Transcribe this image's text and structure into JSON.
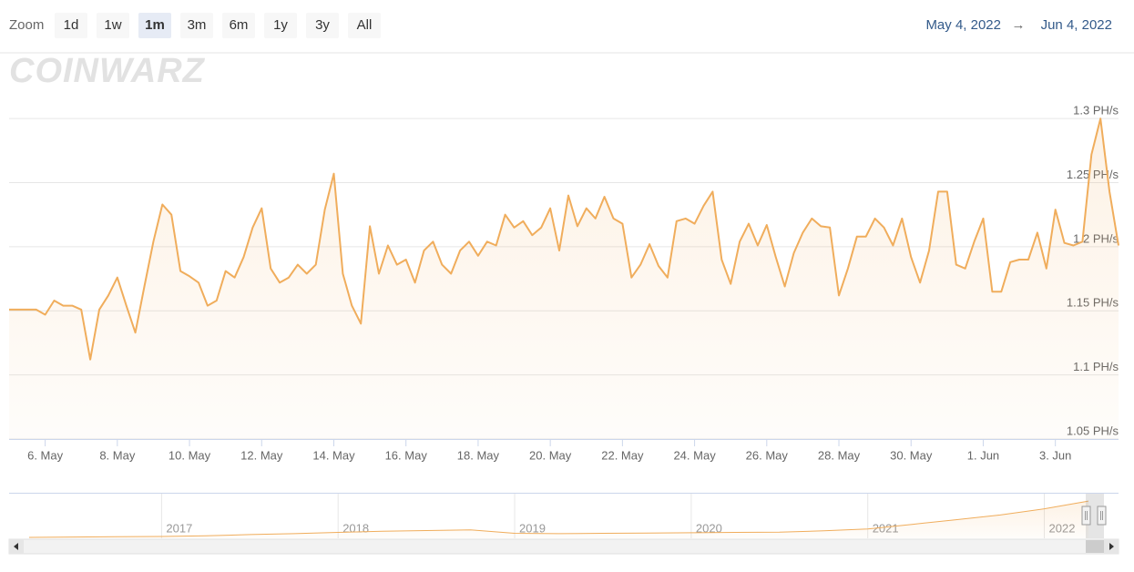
{
  "zoom_label": "Zoom",
  "zoom_buttons": [
    {
      "label": "1d",
      "selected": false
    },
    {
      "label": "1w",
      "selected": false
    },
    {
      "label": "1m",
      "selected": true
    },
    {
      "label": "3m",
      "selected": false
    },
    {
      "label": "6m",
      "selected": false
    },
    {
      "label": "1y",
      "selected": false
    },
    {
      "label": "3y",
      "selected": false
    },
    {
      "label": "All",
      "selected": false
    }
  ],
  "range": {
    "from": "May 4, 2022",
    "separator": "→",
    "to": "Jun 4, 2022"
  },
  "watermark": "COINWARZ",
  "chart_data": [
    {
      "type": "area",
      "color": "#f0ad5c",
      "categories": [
        null,
        null,
        null,
        null,
        "6. May",
        null,
        null,
        null,
        null,
        null,
        null,
        null,
        "8. May",
        null,
        null,
        null,
        null,
        null,
        null,
        null,
        "10. May",
        null,
        null,
        null,
        null,
        null,
        null,
        null,
        "12. May",
        null,
        null,
        null,
        null,
        null,
        null,
        null,
        "14. May",
        null,
        null,
        null,
        null,
        null,
        null,
        null,
        "16. May",
        null,
        null,
        null,
        null,
        null,
        null,
        null,
        "18. May",
        null,
        null,
        null,
        null,
        null,
        null,
        null,
        "20. May",
        null,
        null,
        null,
        null,
        null,
        null,
        null,
        "22. May",
        null,
        null,
        null,
        null,
        null,
        null,
        null,
        "24. May",
        null,
        null,
        null,
        null,
        null,
        null,
        null,
        "26. May",
        null,
        null,
        null,
        null,
        null,
        null,
        null,
        "28. May",
        null,
        null,
        null,
        null,
        null,
        null,
        null,
        "30. May",
        null,
        null,
        null,
        null,
        null,
        null,
        null,
        "1. Jun",
        null,
        null,
        null,
        null,
        null,
        null,
        null,
        "3. Jun",
        null,
        null,
        null,
        null,
        null,
        null,
        null
      ],
      "values": [
        1.151,
        1.151,
        1.151,
        1.151,
        1.147,
        1.158,
        1.154,
        1.154,
        1.151,
        1.112,
        1.151,
        1.162,
        1.176,
        1.154,
        1.133,
        1.169,
        1.204,
        1.233,
        1.225,
        1.181,
        1.177,
        1.172,
        1.154,
        1.158,
        1.181,
        1.176,
        1.192,
        1.215,
        1.23,
        1.183,
        1.172,
        1.176,
        1.186,
        1.179,
        1.186,
        1.229,
        1.257,
        1.179,
        1.154,
        1.14,
        1.216,
        1.179,
        1.201,
        1.186,
        1.19,
        1.172,
        1.197,
        1.204,
        1.186,
        1.179,
        1.197,
        1.204,
        1.193,
        1.204,
        1.201,
        1.225,
        1.215,
        1.22,
        1.209,
        1.215,
        1.23,
        1.197,
        1.24,
        1.216,
        1.23,
        1.222,
        1.239,
        1.222,
        1.218,
        1.176,
        1.186,
        1.202,
        1.185,
        1.176,
        1.22,
        1.222,
        1.218,
        1.232,
        1.243,
        1.19,
        1.171,
        1.204,
        1.218,
        1.201,
        1.217,
        1.192,
        1.169,
        1.195,
        1.211,
        1.222,
        1.216,
        1.215,
        1.162,
        1.183,
        1.208,
        1.208,
        1.222,
        1.215,
        1.201,
        1.222,
        1.192,
        1.172,
        1.197,
        1.243,
        1.243,
        1.186,
        1.183,
        1.204,
        1.222,
        1.165,
        1.165,
        1.188,
        1.19,
        1.19,
        1.211,
        1.183,
        1.229,
        1.203,
        1.201,
        1.204,
        1.272,
        1.3,
        1.243,
        1.201
      ],
      "ylim": [
        1.05,
        1.325
      ],
      "yticks": [
        {
          "value": 1.05,
          "label": "1.05 PH/s"
        },
        {
          "value": 1.1,
          "label": "1.1 PH/s"
        },
        {
          "value": 1.15,
          "label": "1.15 PH/s"
        },
        {
          "value": 1.2,
          "label": "1.2 PH/s"
        },
        {
          "value": 1.25,
          "label": "1.25 PH/s"
        },
        {
          "value": 1.3,
          "label": "1.3 PH/s"
        }
      ],
      "grid": true
    },
    {
      "type": "area",
      "color": "#f0ad5c",
      "categories": [
        null,
        null,
        null,
        "2017",
        null,
        null,
        null,
        "2018",
        null,
        null,
        null,
        "2019",
        null,
        null,
        null,
        "2020",
        null,
        null,
        null,
        "2021",
        null,
        null,
        null,
        "2022",
        null
      ],
      "values": [
        0.03,
        0.04,
        0.05,
        0.06,
        0.08,
        0.12,
        0.15,
        0.19,
        0.23,
        0.25,
        0.27,
        0.16,
        0.15,
        0.16,
        0.17,
        0.18,
        0.19,
        0.2,
        0.24,
        0.3,
        0.45,
        0.6,
        0.75,
        0.95,
        1.2
      ],
      "ylim": [
        0,
        1.35
      ]
    }
  ]
}
